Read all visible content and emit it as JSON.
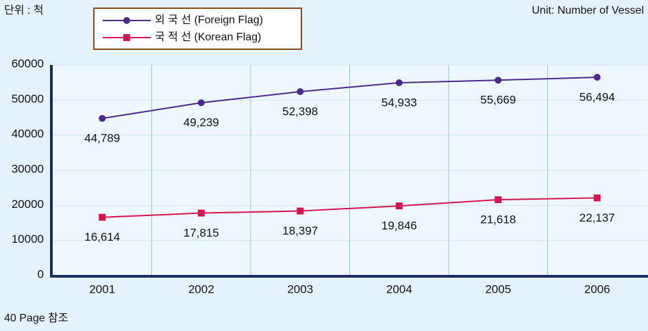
{
  "chart_data": {
    "type": "line",
    "unit_note": "단위 : 척",
    "unit_note_en": "Unit: Number of Vessel",
    "footnote": "40 Page 참조",
    "categories": [
      "2001",
      "2002",
      "2003",
      "2004",
      "2005",
      "2006"
    ],
    "series": [
      {
        "name": "외 국 선 (Foreign Flag)",
        "color": "#4a2a8a",
        "marker": "circle",
        "values": [
          44789,
          49239,
          52398,
          54933,
          55669,
          56494
        ],
        "value_labels": [
          "44,789",
          "49,239",
          "52,398",
          "54,933",
          "55,669",
          "56,494"
        ]
      },
      {
        "name": "국 적 선 (Korean Flag)",
        "color": "#d6144f",
        "marker": "square",
        "values": [
          16614,
          17815,
          18397,
          19846,
          21618,
          22137
        ],
        "value_labels": [
          "16,614",
          "17,815",
          "18,397",
          "19,846",
          "21,618",
          "22,137"
        ]
      }
    ],
    "ylim": [
      0,
      60000
    ],
    "yticks": [
      0,
      10000,
      20000,
      30000,
      40000,
      50000,
      60000
    ],
    "grid": true,
    "legend": "top-left"
  }
}
